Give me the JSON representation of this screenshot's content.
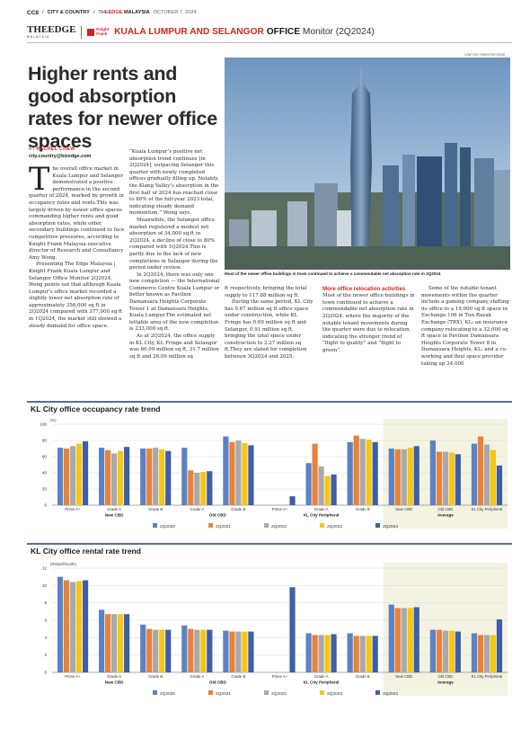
{
  "page": {
    "page_number": "CC8",
    "section": "CITY & COUNTRY",
    "publication_prefix": "THE",
    "publication_name": "EDGE",
    "publication_suffix": "MALAYSIA",
    "date": "OCTOBER 7, 2024"
  },
  "header": {
    "logo_text": "THEEDGE",
    "logo_sub": "MALAYSIA",
    "partner_line1": "Knight",
    "partner_line2": "Frank",
    "title_main": "KUALA LUMPUR AND SELANGOR",
    "title_office": "OFFICE",
    "title_period": "Monitor (2Q2024)"
  },
  "colors": {
    "accent_red": "#c72a1c",
    "series_2Q2020": "#5b82c4",
    "series_2Q2021": "#e8823a",
    "series_2Q2022": "#a9a9a9",
    "series_2Q2023": "#f5c518",
    "series_2Q2024": "#3e5fa8",
    "average_band": "#f4f3e2"
  },
  "article": {
    "headline": "Higher rents and good absorption rates for newer office spaces",
    "byline_prefix": "BY",
    "byline_name": "RACHEL CHEW",
    "email": "city.country@bizedge.com",
    "photo_credit": "LOW YEN YEING/THE EDGE",
    "photo_caption": "Most of the newer office buildings in town continued to achieve a commendable net absorption rate in 2Q2024",
    "dropcap": "T",
    "p1": "he overall office market in Kuala Lumpur and Selangor demonstrated a positive performance in the second quarter of 2024, marked by growth in occupancy rates and rents.This was largely driven by newer office spaces commanding higher rents and good absorption rates, while older, secondary buildings continued to face competitive pressures, according to Knight Frank Malaysia executive director of Research and Consultancy Amy Wong.",
    "p2": "Presenting The Edge Malaysia | Knight Frank Kuala Lumpur and Selangor Office Monitor 2Q2024, Wong points out that although Kuala Lumpur’s office market recorded a slightly lower net absorption rate of approximately 356,000 sq ft in 2Q2024 compared with 377,000 sq ft in 1Q2024, the market still showed a steady demand for office space.",
    "p3": "“Kuala Lumpur’s positive net absorption trend continues [in 2Q2024], outpacing Selangor this quarter with newly completed offices gradually filling up. Notably, the Klang Valley’s absorption in the first half of 2024 has reached close to 80% of the full-year 2023 total, indicating steady demand momentum,” Wong says.",
    "p4": "Meanwhile, the Selangor office market registered a modest net absorption of 34,000 sq ft in 2Q2024, a decline of close to 80% compared with 1Q2024.This is partly due to the lack of new completions in Selangor during the period under review.",
    "p5": "In 2Q2024, there was only one new completion — the International Commerce Centre Kuala Lumpur or better known as Pavilion Damansara Heights Corporate Tower 1 at Damansara Heights, Kuala Lumpur.The estimated net lettable area of the new completion is 233,000 sq ft.",
    "p6": "As at 2Q2024, the office supply in KL City, KL Fringe and Selangor was 60.09 million sq ft, 31.7 million sq ft and 26.09 million sq",
    "p7": "ft respectively, bringing the total supply to 117.88 million sq ft.",
    "p8": "During the same period, KL City has 0.67 million sq ft office space under construction, while KL Fringe has 0.69 million sq ft and Selangor, 0.91 million sq ft, bringing the total space under construction to 2.27 million sq ft.They are slated for completion between 3Q2024 and 2025.",
    "subhead": "More office relocation activities",
    "p9": "Most of the newer office buildings in town continued to achieve a commendable net absorption rate in 2Q2024, where the majority of the notable tenant movements during the quarter were due to relocation, indicating the stronger trend of “flight to quality” and “flight to green”.",
    "p10": "Some of the notable tenant movements within the quarter include a gaming company shifting its office to a 19,000 sq ft space in Exchange 106 in Tun Razak Exchange (TRX), KL; an insurance company relocating to a 32,000 sq ft space in Pavilion Damansara Heights Corporate Tower 8 in Damansara Heights, KL; and a co-working and flexi space provider taking up 24,000"
  },
  "chart_data": [
    {
      "type": "bar",
      "title": "KL City office occupancy rate trend",
      "ylabel": "(%)",
      "ylim": [
        0,
        100
      ],
      "yticks": [
        0,
        20,
        40,
        60,
        80,
        100
      ],
      "categories": [
        "Prime A+",
        "Grade A",
        "Grade B",
        "Grade A",
        "Grade B",
        "Prime A+",
        "Grade A",
        "Grade B",
        "New CBD",
        "Old CBD",
        "KL City Peripheral"
      ],
      "groups": [
        {
          "label": "New CBD",
          "span": 3
        },
        {
          "label": "Old CBD",
          "span": 2
        },
        {
          "label": "KL City Peripheral",
          "span": 3
        },
        {
          "label": "Average",
          "span": 3
        }
      ],
      "series": [
        {
          "name": "2Q2020",
          "values": [
            71,
            71,
            70,
            71,
            85,
            null,
            52,
            78,
            70,
            80,
            76
          ]
        },
        {
          "name": "2Q2021",
          "values": [
            70,
            68,
            70,
            43,
            78,
            null,
            76,
            86,
            69,
            66,
            85
          ]
        },
        {
          "name": "2Q2022",
          "values": [
            73,
            64,
            71,
            40,
            80,
            null,
            48,
            82,
            69,
            66,
            75
          ]
        },
        {
          "name": "2Q2023",
          "values": [
            76,
            67,
            69,
            41,
            77,
            null,
            36,
            81,
            71,
            65,
            68
          ]
        },
        {
          "name": "2Q2024",
          "values": [
            79,
            72,
            67,
            42,
            74,
            11,
            38,
            78,
            73,
            63,
            49
          ]
        }
      ]
    },
    {
      "type": "bar",
      "title": "KL City office rental rate trend",
      "ylabel": "(RM/psf/month)",
      "ylim": [
        0,
        12
      ],
      "yticks": [
        0,
        2,
        4,
        6,
        8,
        10,
        12
      ],
      "categories": [
        "Prime A+",
        "Grade A",
        "Grade B",
        "Grade A",
        "Grade B",
        "Prime A+",
        "Grade A",
        "Grade B",
        "New CBD",
        "Old CBD",
        "KL City Peripheral"
      ],
      "groups": [
        {
          "label": "New CBD",
          "span": 3
        },
        {
          "label": "Old CBD",
          "span": 2
        },
        {
          "label": "KL City Peripheral",
          "span": 3
        },
        {
          "label": "Average",
          "span": 3
        }
      ],
      "series": [
        {
          "name": "2Q2020",
          "values": [
            11.0,
            7.2,
            5.5,
            5.4,
            4.8,
            null,
            4.5,
            4.5,
            7.8,
            4.9,
            4.5
          ]
        },
        {
          "name": "2Q2021",
          "values": [
            10.6,
            6.7,
            5.0,
            5.0,
            4.7,
            null,
            4.3,
            4.2,
            7.4,
            4.9,
            4.3
          ]
        },
        {
          "name": "2Q2022",
          "values": [
            10.4,
            6.7,
            4.9,
            4.9,
            4.7,
            null,
            4.3,
            4.2,
            7.4,
            4.8,
            4.3
          ]
        },
        {
          "name": "2Q2023",
          "values": [
            10.5,
            6.7,
            4.9,
            4.9,
            4.7,
            null,
            4.3,
            4.2,
            7.4,
            4.8,
            4.3
          ]
        },
        {
          "name": "2Q2024",
          "values": [
            10.6,
            6.7,
            4.9,
            4.9,
            4.7,
            9.8,
            4.4,
            4.2,
            7.5,
            4.7,
            6.1
          ]
        }
      ]
    }
  ]
}
